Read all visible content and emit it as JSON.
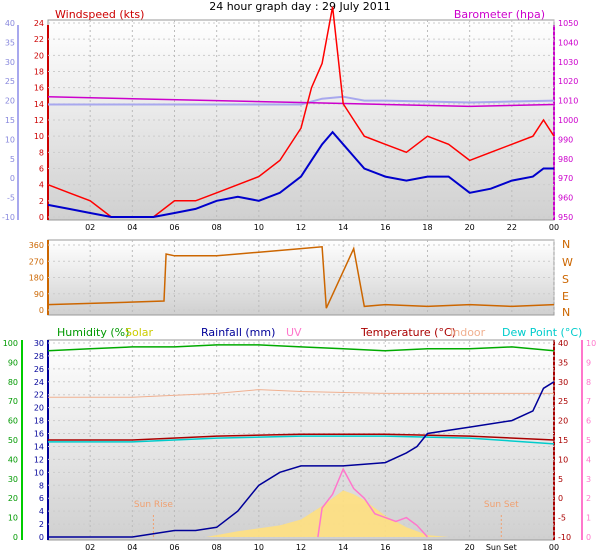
{
  "title": "24 hour graph day : 29 July 2011",
  "chart_data": [
    {
      "type": "line",
      "title": "24 hour graph day : 29 July 2011",
      "labels": {
        "windspeed": "Windspeed (kts)",
        "barometer": "Barometer (hpa)"
      },
      "left_axis_blue": {
        "ticks": [
          -10,
          -5,
          0,
          5,
          10,
          15,
          20,
          25,
          30,
          35,
          40
        ],
        "ylim": [
          -10,
          40
        ]
      },
      "left_axis_red": {
        "ticks": [
          0,
          2,
          4,
          6,
          8,
          10,
          12,
          14,
          16,
          18,
          20,
          22,
          24
        ],
        "ylim": [
          0,
          24
        ]
      },
      "right_axis": {
        "ticks": [
          950,
          960,
          970,
          980,
          990,
          1000,
          1010,
          1020,
          1030,
          1040,
          1050
        ],
        "ylim": [
          950,
          1050
        ]
      },
      "x_ticks": [
        "02",
        "04",
        "06",
        "08",
        "10",
        "12",
        "14",
        "16",
        "18",
        "20",
        "22",
        "00"
      ],
      "series": [
        {
          "name": "Windspeed (kts)",
          "color": "#ff0000",
          "x": [
            0,
            1,
            2,
            3,
            4,
            5,
            6,
            7,
            8,
            9,
            10,
            11,
            12,
            12.5,
            13,
            13.5,
            14,
            14.5,
            15,
            16,
            17,
            18,
            19,
            20,
            21,
            22,
            23,
            23.5,
            24
          ],
          "values": [
            4,
            3,
            2,
            0,
            0,
            0,
            2,
            2,
            3,
            4,
            5,
            7,
            11,
            16,
            19,
            26,
            14,
            12,
            10,
            9,
            8,
            10,
            9,
            7,
            8,
            9,
            10,
            12,
            10
          ]
        },
        {
          "color": "#0000cc",
          "x": [
            0,
            1,
            2,
            3,
            4,
            5,
            6,
            7,
            8,
            9,
            10,
            11,
            12,
            12.5,
            13,
            13.5,
            14,
            14.5,
            15,
            16,
            17,
            18,
            19,
            20,
            21,
            22,
            23,
            23.5,
            24
          ],
          "values": [
            1.5,
            1,
            0.5,
            0,
            0,
            0,
            0.5,
            1,
            2,
            2.5,
            2,
            3,
            5,
            7,
            9,
            10.5,
            9,
            7.5,
            6,
            5,
            4.5,
            5,
            5,
            3,
            3.5,
            4.5,
            5,
            6,
            6
          ]
        },
        {
          "name": "Barometer (hpa)",
          "color": "#cc00cc",
          "x": [
            0,
            4,
            8,
            12,
            16,
            20,
            24
          ],
          "values": [
            1012,
            1011,
            1010,
            1009,
            1008,
            1007,
            1008
          ]
        },
        {
          "color": "#a8a8ee",
          "x": [
            0,
            4,
            8,
            12,
            13,
            14,
            15,
            16,
            20,
            24
          ],
          "values": [
            1008,
            1008,
            1008,
            1008,
            1011,
            1012,
            1010,
            1010,
            1009,
            1010
          ]
        }
      ]
    },
    {
      "type": "line",
      "labels": {
        "n": "N",
        "w": "W",
        "s": "S",
        "e": "E",
        "n2": "N"
      },
      "left_axis": {
        "ticks": [
          0,
          90,
          180,
          270,
          360
        ],
        "ylim": [
          0,
          360
        ]
      },
      "series": [
        {
          "color": "#cc6600",
          "x": [
            0,
            3,
            5.5,
            5.6,
            6,
            8,
            10,
            12,
            13,
            13.2,
            14.5,
            15,
            16,
            18,
            20,
            22,
            24
          ],
          "values": [
            30,
            40,
            50,
            310,
            300,
            300,
            320,
            340,
            350,
            10,
            340,
            20,
            30,
            20,
            30,
            20,
            30
          ]
        }
      ]
    },
    {
      "type": "line",
      "labels": {
        "humidity": "Humidity (%)",
        "solar": "Solar",
        "rainfall": "Rainfall (mm)",
        "uv": "UV",
        "temperature": "Temperature (°C)",
        "indoor": "Indoor",
        "dewpoint": "Dew Point (°C)",
        "sunrise": "Sun Rise",
        "sunset": "Sun Set",
        "sunset_axis": "Sun Set"
      },
      "left_axis_green": {
        "ticks": [
          0,
          10,
          20,
          30,
          40,
          50,
          60,
          70,
          80,
          90,
          100
        ],
        "ylim": [
          0,
          100
        ]
      },
      "left_axis_blue": {
        "ticks": [
          0,
          2,
          4,
          6,
          8,
          10,
          12,
          14,
          16,
          18,
          20,
          22,
          24,
          26,
          28,
          30
        ],
        "ylim": [
          0,
          30
        ]
      },
      "right_axis_red": {
        "ticks": [
          -10,
          -5,
          0,
          5,
          10,
          15,
          20,
          25,
          30,
          35,
          40
        ],
        "ylim": [
          -10,
          40
        ]
      },
      "right_axis_pink": {
        "ticks": [
          0,
          1,
          2,
          3,
          4,
          5,
          6,
          7,
          8,
          9,
          10
        ],
        "ylim": [
          0,
          10
        ]
      },
      "x_ticks": [
        "02",
        "04",
        "06",
        "08",
        "10",
        "12",
        "14",
        "16",
        "18",
        "20",
        "00"
      ],
      "sunrise_hour": 5,
      "sunset_hour": 21.5,
      "series": [
        {
          "name": "Humidity (%)",
          "color": "#00aa00",
          "x": [
            0,
            2,
            4,
            6,
            8,
            10,
            12,
            14,
            16,
            18,
            20,
            22,
            24
          ],
          "values": [
            96,
            97,
            98,
            98,
            99,
            99,
            98,
            97,
            96,
            97,
            97,
            98,
            96
          ]
        },
        {
          "name": "Rainfall (mm)",
          "color": "#000099",
          "x": [
            0,
            2,
            4,
            5,
            6,
            7,
            8,
            9,
            10,
            11,
            12,
            14,
            16,
            17,
            17.5,
            18,
            20,
            22,
            23,
            23.5,
            24
          ],
          "values": [
            0,
            0,
            0,
            0.5,
            1,
            1,
            1.5,
            4,
            8,
            10,
            11,
            11,
            11.5,
            13,
            14,
            16,
            17,
            18,
            19.5,
            23,
            24
          ]
        },
        {
          "name": "Temperature (°C)",
          "color": "#aa0000",
          "x": [
            0,
            4,
            8,
            12,
            16,
            20,
            24
          ],
          "values": [
            15,
            15,
            16,
            16.5,
            16.5,
            16,
            15
          ]
        },
        {
          "name": "Indoor",
          "color": "#f0b090",
          "x": [
            0,
            4,
            8,
            10,
            12,
            16,
            20,
            24
          ],
          "values": [
            26,
            26,
            27,
            28,
            27.5,
            27,
            27,
            27
          ]
        },
        {
          "name": "Dew Point (°C)",
          "color": "#00cccc",
          "x": [
            0,
            4,
            8,
            12,
            16,
            20,
            24
          ],
          "values": [
            14.5,
            14.5,
            15.5,
            16,
            16,
            15.5,
            14
          ]
        },
        {
          "name": "Solar",
          "color": "#ffe080",
          "x": [
            7.5,
            9,
            11,
            12,
            13,
            13.5,
            14,
            14.5,
            15,
            16,
            17,
            18,
            19
          ],
          "values": [
            0,
            0.3,
            0.6,
            0.9,
            1.6,
            2.0,
            2.4,
            2.2,
            1.9,
            1.1,
            0.5,
            0.1,
            0
          ]
        },
        {
          "name": "UV",
          "color": "#ff77cc",
          "x": [
            12.8,
            13,
            13.5,
            14,
            14.5,
            15,
            15.5,
            16,
            16.5,
            17,
            17.5,
            18
          ],
          "values": [
            0,
            1.5,
            2.2,
            3.5,
            2.5,
            2.0,
            1.2,
            1.0,
            0.8,
            1.0,
            0.6,
            0
          ]
        }
      ]
    }
  ]
}
